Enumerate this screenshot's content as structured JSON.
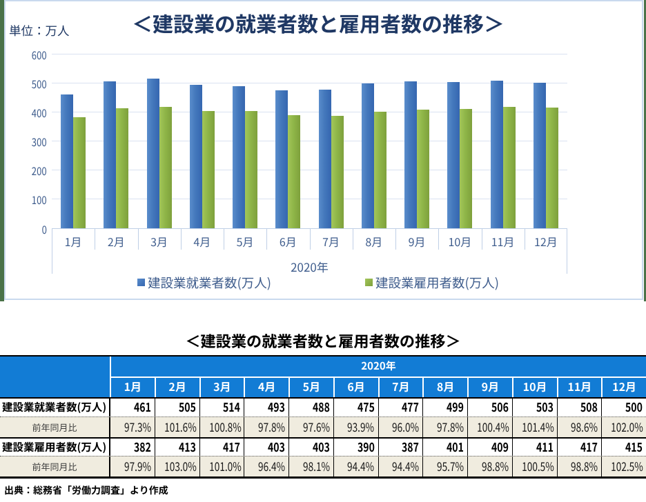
{
  "page": {
    "unit_label": "単位：万人",
    "left_edge_color": "#4A7248"
  },
  "chart_data": {
    "type": "bar",
    "title": "＜建設業の就業者数と雇用者数の推移＞",
    "unit_label": "単位：万人",
    "categories": [
      "1月",
      "2月",
      "3月",
      "4月",
      "5月",
      "6月",
      "7月",
      "8月",
      "9月",
      "10月",
      "11月",
      "12月"
    ],
    "x_group_label": "2020年",
    "ylim": [
      0,
      600
    ],
    "yticks": [
      600,
      500,
      400,
      300,
      200,
      100,
      0
    ],
    "grid": true,
    "legend_position": "bottom",
    "series": [
      {
        "name": "建設業就業者数(万人)",
        "color": "#4374B9",
        "values": [
          461,
          505,
          514,
          493,
          488,
          475,
          477,
          499,
          506,
          503,
          508,
          500
        ]
      },
      {
        "name": "建設業雇用者数(万人)",
        "color": "#8DB247",
        "values": [
          382,
          413,
          417,
          403,
          403,
          390,
          387,
          401,
          409,
          411,
          417,
          415
        ]
      }
    ]
  },
  "table": {
    "title": "＜建設業の就業者数と雇用者数の推移＞",
    "year_header": "2020年",
    "months": [
      "1月",
      "2月",
      "3月",
      "4月",
      "5月",
      "6月",
      "7月",
      "8月",
      "9月",
      "10月",
      "11月",
      "12月"
    ],
    "rows": [
      {
        "label": "建設業就業者数(万人)",
        "bold": true,
        "values": [
          "461",
          "505",
          "514",
          "493",
          "488",
          "475",
          "477",
          "499",
          "506",
          "503",
          "508",
          "500"
        ]
      },
      {
        "label": "前年同月比",
        "bold": false,
        "values": [
          "97.3%",
          "101.6%",
          "100.8%",
          "97.8%",
          "97.6%",
          "93.9%",
          "96.0%",
          "97.8%",
          "100.4%",
          "101.4%",
          "98.6%",
          "102.0%"
        ]
      },
      {
        "label": "建設業雇用者数(万人)",
        "bold": true,
        "values": [
          "382",
          "413",
          "417",
          "403",
          "403",
          "390",
          "387",
          "401",
          "409",
          "411",
          "417",
          "415"
        ]
      },
      {
        "label": "前年同月比",
        "bold": false,
        "values": [
          "97.9%",
          "103.0%",
          "101.0%",
          "96.4%",
          "98.1%",
          "94.4%",
          "94.4%",
          "95.7%",
          "98.8%",
          "100.5%",
          "98.8%",
          "102.5%"
        ]
      }
    ],
    "source_note": "出典：総務省「労働力調査」より作成"
  }
}
